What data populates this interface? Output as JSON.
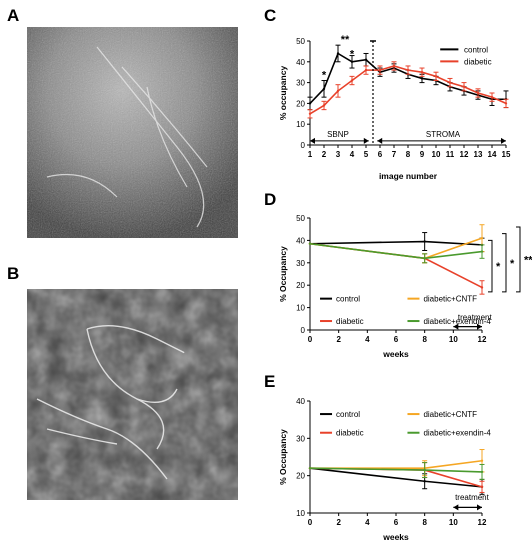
{
  "panels": {
    "A": "A",
    "B": "B",
    "C": "C",
    "D": "D",
    "E": "E"
  },
  "chart_data": [
    {
      "panel": "C",
      "type": "line",
      "xlabel": "image number",
      "ylabel": "% occupancy",
      "ylim": [
        0,
        50
      ],
      "xlim": [
        1,
        15
      ],
      "yticks": [
        0,
        10,
        20,
        30,
        40,
        50
      ],
      "x": [
        1,
        2,
        3,
        4,
        5,
        6,
        7,
        8,
        9,
        10,
        11,
        12,
        13,
        14,
        15
      ],
      "series": [
        {
          "name": "control",
          "color": "#000000",
          "values": [
            20,
            27,
            44,
            40,
            41,
            35,
            37,
            34,
            32,
            31,
            28,
            26,
            24,
            22,
            22
          ],
          "errors": [
            3,
            4,
            4,
            3,
            3,
            2,
            2,
            2,
            2,
            2,
            2,
            2,
            2,
            3,
            4
          ]
        },
        {
          "name": "diabetic",
          "color": "#e8412a",
          "values": [
            15,
            19,
            26,
            31,
            36,
            36,
            38,
            36,
            35,
            33,
            30,
            28,
            25,
            23,
            20
          ],
          "errors": [
            2,
            2,
            3,
            2,
            2,
            2,
            2,
            2,
            2,
            2,
            2,
            2,
            2,
            2,
            2
          ]
        }
      ],
      "significance": [
        {
          "x": 3,
          "label": "*"
        },
        {
          "x": 3.5,
          "label": "**"
        },
        {
          "x": 4.5,
          "label": "*"
        }
      ],
      "regions": {
        "left": "SBNP",
        "right": "STROMA",
        "divider": 5.5
      },
      "legend_position": "top-right"
    },
    {
      "panel": "D",
      "type": "line",
      "xlabel": "weeks",
      "ylabel": "% Occupancy",
      "ylim": [
        0,
        50
      ],
      "xlim": [
        0,
        12
      ],
      "yticks": [
        0,
        10,
        20,
        30,
        40,
        50
      ],
      "xticks": [
        0,
        2,
        4,
        6,
        8,
        10,
        12
      ],
      "series": [
        {
          "name": "control",
          "color": "#000000",
          "x": [
            0,
            8,
            12
          ],
          "values": [
            38.5,
            39.5,
            38
          ],
          "errors": [
            0,
            4,
            3
          ]
        },
        {
          "name": "diabetic",
          "color": "#e8412a",
          "x": [
            0,
            8,
            12
          ],
          "values": [
            38.5,
            32,
            19
          ],
          "errors": [
            0,
            2,
            3
          ]
        },
        {
          "name": "diabetic+CNTF",
          "color": "#f5a623",
          "x": [
            0,
            8,
            12
          ],
          "values": [
            38.5,
            32,
            41
          ],
          "errors": [
            0,
            2,
            6
          ]
        },
        {
          "name": "diabetic+exendin-4",
          "color": "#4a9a2e",
          "x": [
            0,
            8,
            12
          ],
          "values": [
            38.5,
            32,
            35
          ],
          "errors": [
            0,
            2,
            3
          ]
        }
      ],
      "annotation": "treatment",
      "significance": [
        "*",
        "*",
        "**"
      ],
      "legend_position": "bottom"
    },
    {
      "panel": "E",
      "type": "line",
      "xlabel": "weeks",
      "ylabel": "% Occupancy",
      "ylim": [
        10,
        40
      ],
      "xlim": [
        0,
        12
      ],
      "yticks": [
        10,
        20,
        30,
        40
      ],
      "xticks": [
        0,
        2,
        4,
        6,
        8,
        10,
        12
      ],
      "series": [
        {
          "name": "control",
          "color": "#000000",
          "x": [
            0,
            8,
            12
          ],
          "values": [
            22,
            18.5,
            17
          ],
          "errors": [
            0,
            2,
            2
          ]
        },
        {
          "name": "diabetic",
          "color": "#e8412a",
          "x": [
            0,
            8,
            12
          ],
          "values": [
            22,
            21.5,
            17
          ],
          "errors": [
            0,
            2,
            1.5
          ]
        },
        {
          "name": "diabetic+CNTF",
          "color": "#f5a623",
          "x": [
            0,
            8,
            12
          ],
          "values": [
            22,
            22,
            24
          ],
          "errors": [
            0,
            2,
            3
          ]
        },
        {
          "name": "diabetic+exendin-4",
          "color": "#4a9a2e",
          "x": [
            0,
            8,
            12
          ],
          "values": [
            22,
            21.5,
            21
          ],
          "errors": [
            0,
            2,
            2
          ]
        }
      ],
      "annotation": "treatment",
      "legend_position": "top"
    }
  ]
}
